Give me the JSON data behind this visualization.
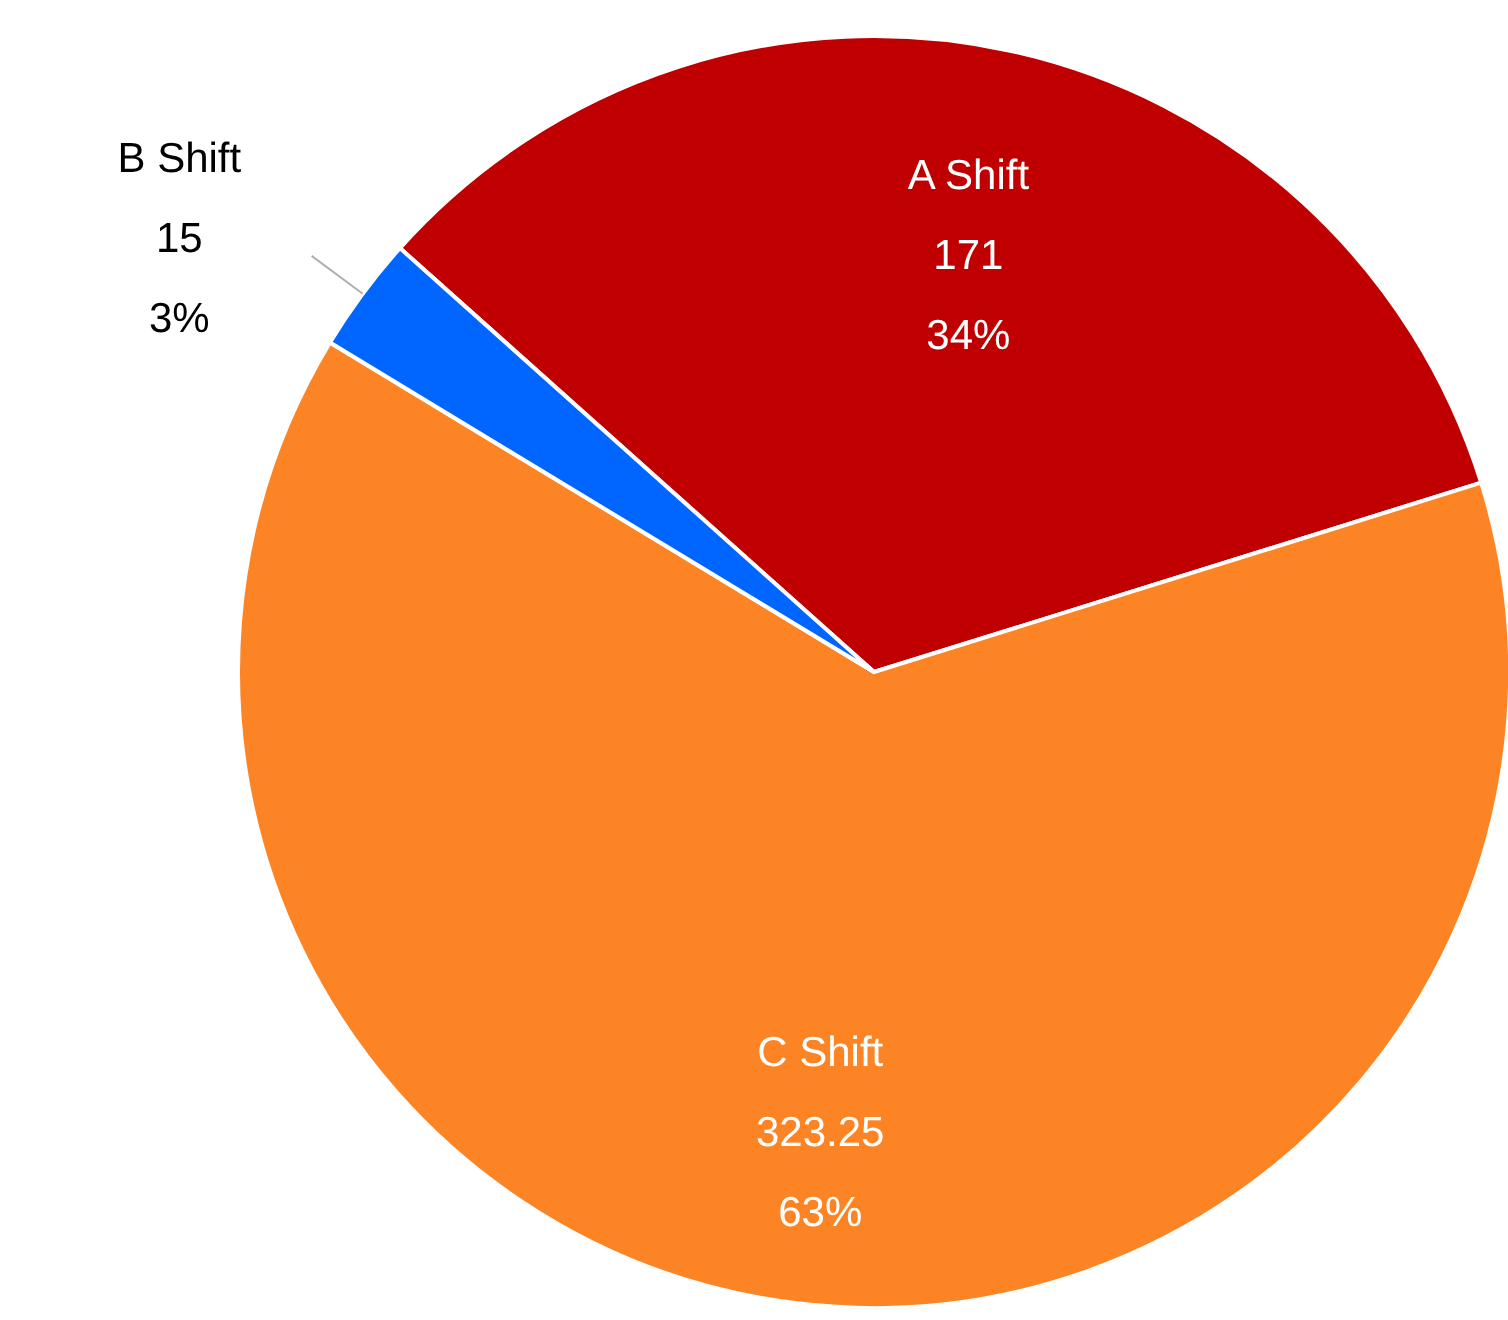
{
  "chart_data": {
    "type": "pie",
    "categories": [
      "A Shift",
      "C Shift",
      "B Shift"
    ],
    "values": [
      171,
      323.25,
      15
    ],
    "value_labels": [
      "171\n34%",
      "323.25\n63%",
      "15\n3%"
    ],
    "colors": [
      "#c00000",
      "#fd8424",
      "#0066ff"
    ]
  }
}
